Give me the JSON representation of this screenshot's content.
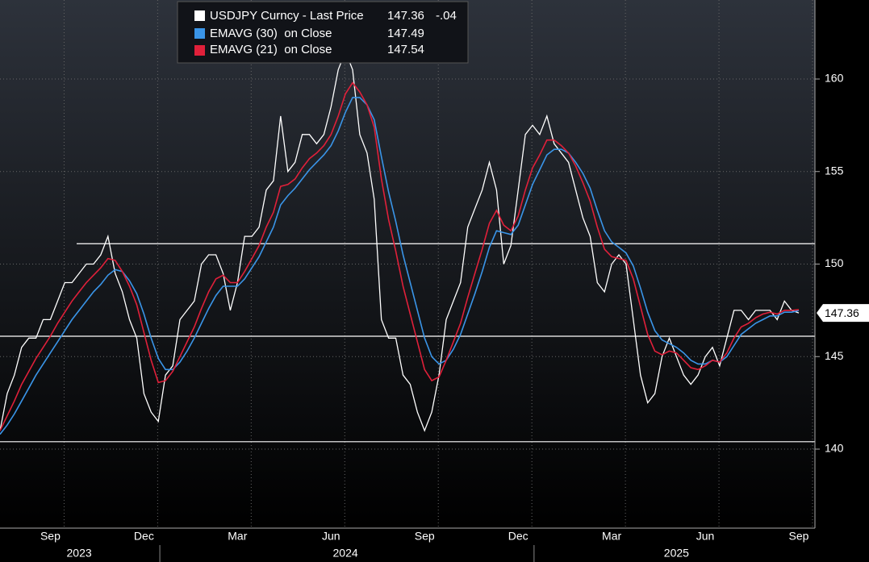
{
  "chart_data": {
    "type": "line",
    "title": "USDJPY Curncy - Last Price",
    "change_label": "-.04",
    "categories": [
      null,
      null,
      null,
      null,
      null,
      null,
      null,
      "Sep",
      null,
      null,
      null,
      null,
      null,
      null,
      null,
      null,
      null,
      null,
      null,
      null,
      "Dec",
      null,
      null,
      null,
      null,
      null,
      null,
      null,
      null,
      null,
      null,
      null,
      null,
      "Mar",
      null,
      null,
      null,
      null,
      null,
      null,
      null,
      null,
      null,
      null,
      null,
      null,
      "Jun",
      null,
      null,
      null,
      null,
      null,
      null,
      null,
      null,
      null,
      null,
      null,
      null,
      "Sep",
      null,
      null,
      null,
      null,
      null,
      null,
      null,
      null,
      null,
      null,
      null,
      null,
      "Dec",
      null,
      null,
      null,
      null,
      null,
      null,
      null,
      null,
      null,
      null,
      null,
      null,
      "Mar",
      null,
      null,
      null,
      null,
      null,
      null,
      null,
      null,
      null,
      null,
      null,
      null,
      "Jun",
      null,
      null,
      null,
      null,
      null,
      null,
      null,
      null,
      null,
      null,
      null,
      null,
      "Sep"
    ],
    "years": [
      null,
      null,
      null,
      null,
      null,
      null,
      null,
      null,
      null,
      null,
      null,
      "2023",
      null,
      null,
      null,
      null,
      null,
      null,
      null,
      null,
      null,
      null,
      null,
      null,
      null,
      null,
      null,
      null,
      null,
      null,
      null,
      null,
      null,
      null,
      null,
      null,
      null,
      null,
      null,
      null,
      null,
      null,
      null,
      null,
      null,
      null,
      null,
      null,
      "2024",
      null,
      null,
      null,
      null,
      null,
      null,
      null,
      null,
      null,
      null,
      null,
      null,
      null,
      null,
      null,
      null,
      null,
      null,
      null,
      null,
      null,
      null,
      null,
      null,
      null,
      null,
      null,
      null,
      null,
      null,
      null,
      null,
      null,
      null,
      null,
      null,
      null,
      null,
      null,
      null,
      null,
      null,
      null,
      null,
      null,
      "2025",
      null,
      null,
      null,
      null,
      null,
      null,
      null,
      null,
      null,
      null,
      null,
      null,
      null,
      null,
      null,
      null,
      null
    ],
    "series": [
      {
        "name": "USDJPY Curncy - Last Price",
        "color": "#ffffff",
        "values": [
          141,
          143,
          144,
          145.5,
          146,
          146,
          147,
          147,
          148,
          149,
          149,
          149.5,
          150,
          150,
          150.5,
          151.5,
          149.5,
          148.5,
          147,
          146,
          143,
          142,
          141.5,
          144,
          144.5,
          147,
          147.5,
          148,
          150,
          150.5,
          150.5,
          149.5,
          147.5,
          149,
          151.5,
          151.5,
          152,
          154,
          154.5,
          158,
          155,
          155.5,
          157,
          157,
          156.5,
          157,
          158.5,
          160.5,
          161.5,
          160.5,
          157,
          156,
          153.5,
          147,
          146,
          146,
          144,
          143.5,
          142,
          141,
          142,
          144,
          147,
          148,
          149,
          152,
          153,
          154,
          155.5,
          154,
          150,
          151,
          154,
          157,
          157.5,
          157,
          158,
          156.5,
          156,
          155.5,
          154,
          152.5,
          151.5,
          149,
          148.5,
          150,
          150.5,
          150,
          147,
          144,
          142.5,
          143,
          145,
          146,
          145,
          144,
          143.5,
          144,
          145,
          145.5,
          144.5,
          146,
          147.5,
          147.5,
          147,
          147.5,
          147.5,
          147.5,
          147,
          148,
          147.5,
          147.36
        ]
      },
      {
        "name": "EMAVG (30)  on Close",
        "color": "#3a95e8",
        "values": [
          140.8,
          141.3,
          141.9,
          142.6,
          143.3,
          144,
          144.6,
          145.2,
          145.8,
          146.4,
          147,
          147.5,
          148,
          148.5,
          148.9,
          149.4,
          149.7,
          149.6,
          149.1,
          148.4,
          147.3,
          146,
          144.9,
          144.3,
          144.3,
          144.7,
          145.3,
          146,
          146.8,
          147.6,
          148.3,
          148.8,
          148.8,
          148.8,
          149.2,
          149.8,
          150.4,
          151.2,
          152,
          153.2,
          153.7,
          154.1,
          154.6,
          155.1,
          155.5,
          155.9,
          156.4,
          157.2,
          158.2,
          159,
          159,
          158.6,
          157.8,
          155.8,
          153.9,
          152.3,
          150.5,
          149,
          147.5,
          146,
          145,
          144.6,
          144.8,
          145.4,
          146.2,
          147.3,
          148.4,
          149.6,
          150.9,
          151.8,
          151.7,
          151.6,
          152.1,
          153.2,
          154.3,
          155.1,
          155.9,
          156.2,
          156.2,
          156,
          155.5,
          154.9,
          154.1,
          152.9,
          151.8,
          151.2,
          150.9,
          150.6,
          149.9,
          148.7,
          147.4,
          146.4,
          145.9,
          145.7,
          145.5,
          145.2,
          144.8,
          144.6,
          144.6,
          144.8,
          144.7,
          145,
          145.6,
          146.2,
          146.5,
          146.8,
          147,
          147.2,
          147.2,
          147.4,
          147.4,
          147.49
        ]
      },
      {
        "name": "EMAVG (21)  on Close",
        "color": "#e0203a",
        "values": [
          141,
          141.8,
          142.6,
          143.5,
          144.2,
          144.9,
          145.5,
          146.1,
          146.8,
          147.4,
          148,
          148.5,
          149,
          149.4,
          149.8,
          150.3,
          150.2,
          149.6,
          148.8,
          147.8,
          146.3,
          144.8,
          143.6,
          143.7,
          144.2,
          145,
          145.8,
          146.6,
          147.6,
          148.5,
          149.2,
          149.4,
          149,
          149,
          149.6,
          150.3,
          151,
          152,
          152.8,
          154.2,
          154.3,
          154.6,
          155.2,
          155.7,
          156,
          156.4,
          157,
          158,
          159.2,
          159.8,
          159.3,
          158.6,
          157.4,
          154.6,
          152.4,
          150.7,
          148.8,
          147.3,
          145.8,
          144.3,
          143.7,
          143.9,
          144.8,
          145.8,
          146.8,
          148.2,
          149.5,
          150.8,
          152.2,
          152.9,
          152.1,
          151.8,
          152.6,
          154,
          155.2,
          155.9,
          156.7,
          156.7,
          156.4,
          156,
          155.3,
          154.4,
          153.4,
          152,
          150.8,
          150.4,
          150.3,
          150.2,
          149.2,
          147.7,
          146.2,
          145.3,
          145.1,
          145.3,
          145.2,
          144.8,
          144.4,
          144.3,
          144.5,
          144.8,
          144.7,
          145.2,
          146,
          146.6,
          146.8,
          147.1,
          147.3,
          147.4,
          147.3,
          147.5,
          147.5,
          147.54
        ]
      }
    ],
    "reference_lines": [
      151.1,
      146.1,
      140.4
    ],
    "ylim": [
      135.73,
      164.27
    ],
    "yticks": [
      140,
      145,
      150,
      155,
      160
    ],
    "grid": true
  }
}
